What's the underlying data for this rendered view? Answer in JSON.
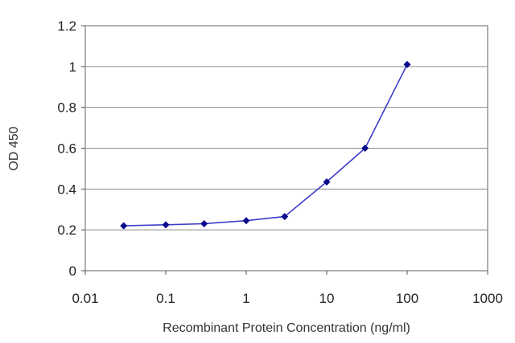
{
  "chart_data": {
    "type": "line",
    "title": "",
    "xlabel": "Recombinant Protein Concentration (ng/ml)",
    "ylabel": "OD 450",
    "x_scale": "log",
    "xlim": [
      0.01,
      1000
    ],
    "ylim": [
      0,
      1.2
    ],
    "x_ticks": [
      0.01,
      0.1,
      1,
      10,
      100,
      1000
    ],
    "x_tick_labels": [
      "0.01",
      "0.1",
      "1",
      "10",
      "100",
      "1000"
    ],
    "y_ticks": [
      0,
      0.2,
      0.4,
      0.6,
      0.8,
      1,
      1.2
    ],
    "y_tick_labels": [
      "0",
      "0.2",
      "0.4",
      "0.6",
      "0.8",
      "1",
      "1.2"
    ],
    "grid": "horizontal",
    "legend": "none",
    "series": [
      {
        "x": [
          0.03,
          0.1,
          0.3,
          1,
          3,
          10,
          30,
          100
        ],
        "y": [
          0.22,
          0.225,
          0.23,
          0.245,
          0.265,
          0.435,
          0.6,
          1.01
        ],
        "color": "#0a0a8c",
        "line_color": "#3d3dc8"
      }
    ]
  }
}
